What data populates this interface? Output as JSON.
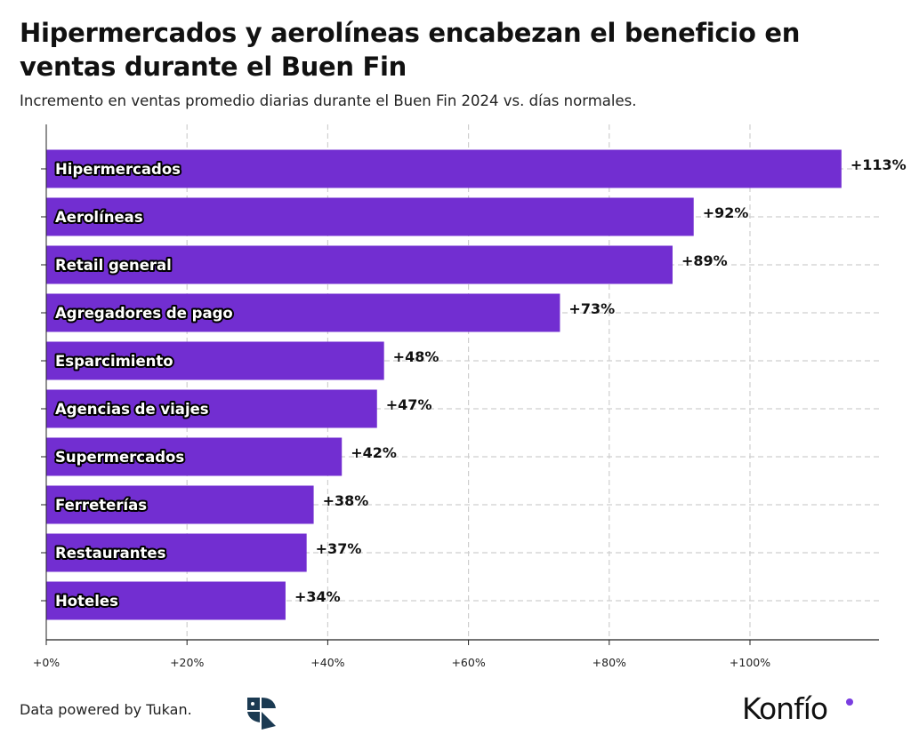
{
  "header": {
    "title": "Hipermercados y aerolíneas encabezan el beneficio en ventas durante el Buen Fin",
    "subtitle": "Incremento en ventas promedio diarias durante el Buen Fin 2024 vs. días normales."
  },
  "footer": {
    "credit": "Data powered by Tukan.",
    "brand": "Konfío"
  },
  "colors": {
    "bar": "#722ed1",
    "accent_dot": "#7a3ee0",
    "tukan_logo": "#1b3a52"
  },
  "chart_data": {
    "type": "bar",
    "orientation": "horizontal",
    "categories": [
      "Hipermercados",
      "Aerolíneas",
      "Retail general",
      "Agregadores de pago",
      "Esparcimiento",
      "Agencias de viajes",
      "Supermercados",
      "Ferreterías",
      "Restaurantes",
      "Hoteles"
    ],
    "values": [
      113,
      92,
      89,
      73,
      48,
      47,
      42,
      38,
      37,
      34
    ],
    "value_labels": [
      "+113%",
      "+92%",
      "+89%",
      "+73%",
      "+48%",
      "+47%",
      "+42%",
      "+38%",
      "+37%",
      "+34%"
    ],
    "x_ticks": [
      0,
      20,
      40,
      60,
      80,
      100
    ],
    "x_tick_labels": [
      "+0%",
      "+20%",
      "+40%",
      "+60%",
      "+80%",
      "+100%"
    ],
    "xlim": [
      0,
      118
    ],
    "grid": true,
    "unit": "%"
  }
}
